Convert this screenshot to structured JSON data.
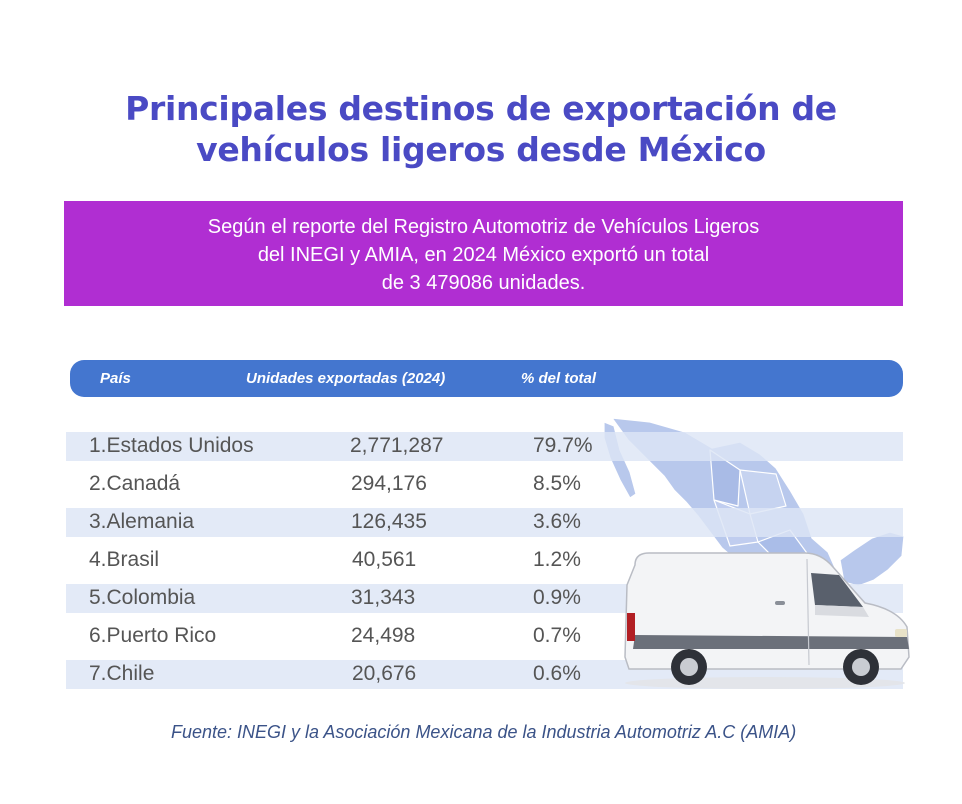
{
  "title": {
    "line1": "Principales destinos de exportación de",
    "line2": "vehículos ligeros desde México"
  },
  "banner": {
    "line1": "Según el reporte del Registro Automotriz de Vehículos Ligeros",
    "line2": "del INEGI y AMIA, en 2024 México exportó un total",
    "line3": "de 3 479086 unidades."
  },
  "colors": {
    "title": "#4a4ac4",
    "banner": "#b02ed2",
    "header": "#4476cf",
    "row_shade": "#dde5f5",
    "map": "#b8c8ec"
  },
  "chart_data": {
    "type": "table",
    "columns": [
      "País",
      "Unidades exportadas (2024)",
      "% del total"
    ],
    "rows": [
      {
        "country": "1.Estados Unidos",
        "units": "2,771,287",
        "percent": "79.7%"
      },
      {
        "country": "2.Canadá",
        "units": "294,176",
        "percent": "8.5%"
      },
      {
        "country": "3.Alemania",
        "units": "126,435",
        "percent": "3.6%"
      },
      {
        "country": "4.Brasil",
        "units": "40,561",
        "percent": "1.2%"
      },
      {
        "country": "5.Colombia",
        "units": "31,343",
        "percent": "0.9%"
      },
      {
        "country": "6.Puerto Rico",
        "units": "24,498",
        "percent": "0.7%"
      },
      {
        "country": "7.Chile",
        "units": "20,676",
        "percent": "0.6%"
      }
    ],
    "units_values": [
      2771287,
      294176,
      126435,
      40561,
      31343,
      24498,
      20676
    ],
    "percent_values": [
      79.7,
      8.5,
      3.6,
      1.2,
      0.9,
      0.7,
      0.6
    ]
  },
  "illustrations": {
    "map": "mexico-map-icon",
    "vehicle": "white-van-icon"
  },
  "source": "Fuente: INEGI y la Asociación Mexicana de la Industria Automotriz A.C (AMIA)"
}
